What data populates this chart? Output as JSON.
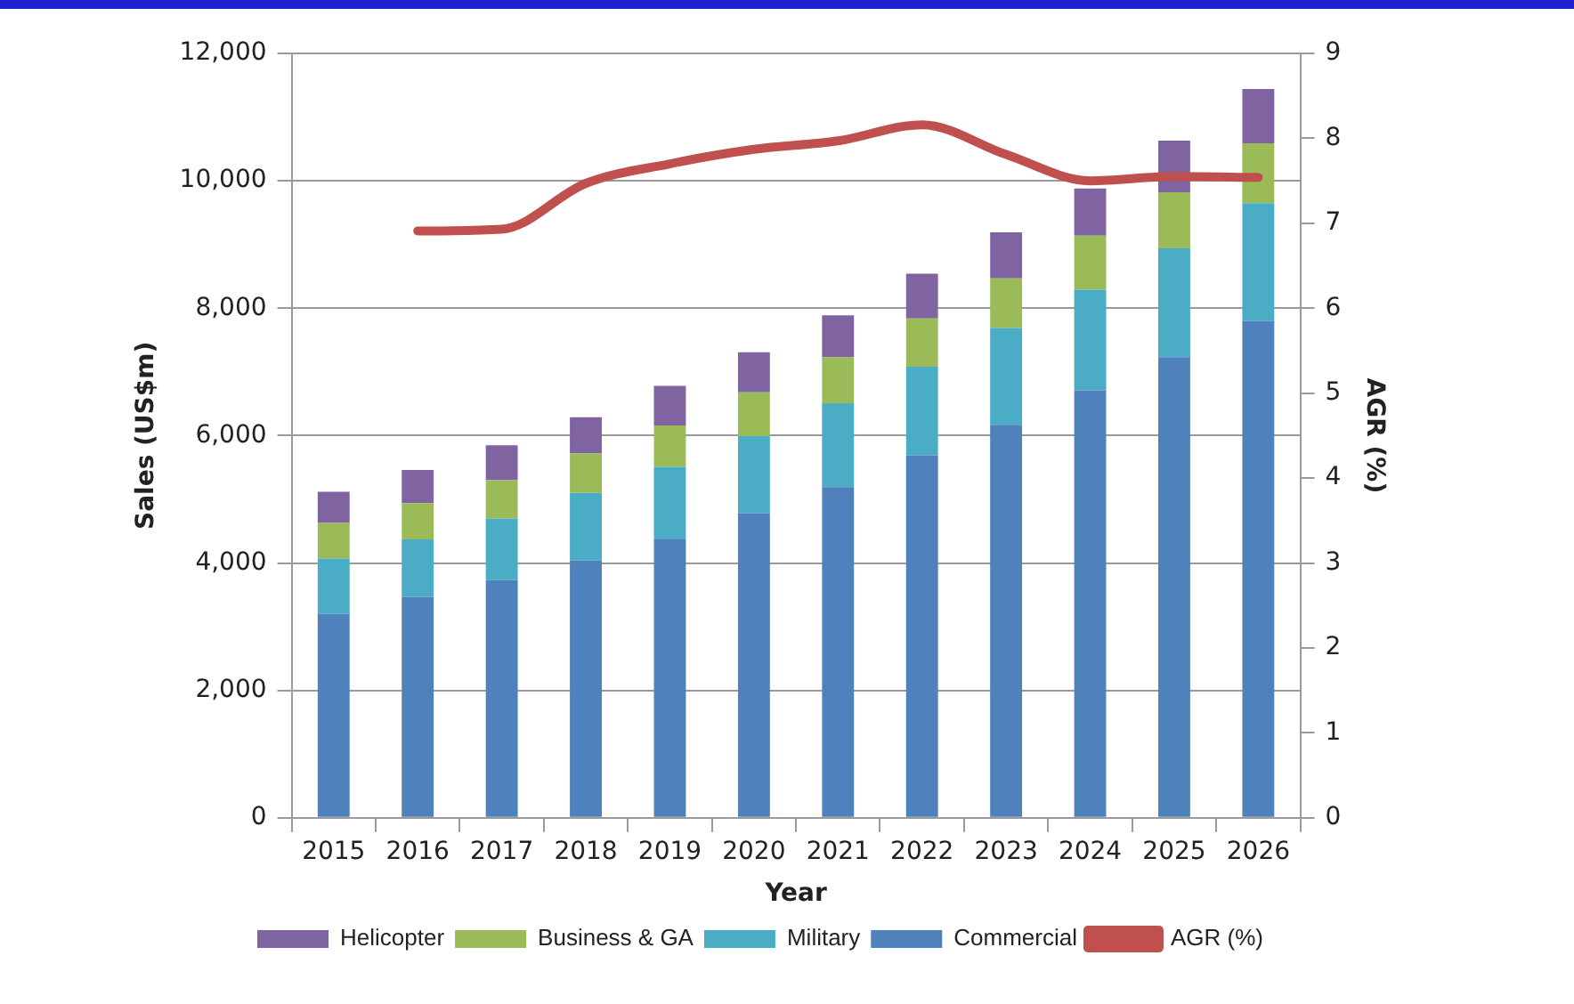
{
  "chart_data": {
    "type": "bar",
    "stacked": true,
    "xlabel": "Year",
    "ylabel": "Sales (US$m)",
    "y2label": "AGR (%)",
    "categories": [
      "2015",
      "2016",
      "2017",
      "2018",
      "2019",
      "2020",
      "2021",
      "2022",
      "2023",
      "2024",
      "2025",
      "2026"
    ],
    "series": [
      {
        "name": "Commercial",
        "color": "#4f81bd",
        "values": [
          3200,
          3470,
          3730,
          4040,
          4380,
          4780,
          5190,
          5690,
          6170,
          6710,
          7230,
          7800
        ]
      },
      {
        "name": "Military",
        "color": "#4bacc6",
        "values": [
          870,
          900,
          970,
          1060,
          1130,
          1210,
          1320,
          1390,
          1520,
          1580,
          1710,
          1850
        ]
      },
      {
        "name": "Business & GA",
        "color": "#9bbb59",
        "values": [
          560,
          570,
          600,
          620,
          650,
          690,
          720,
          760,
          780,
          850,
          880,
          940
        ]
      },
      {
        "name": "Helicopter",
        "color": "#8064a2",
        "values": [
          490,
          520,
          550,
          570,
          620,
          630,
          660,
          700,
          720,
          740,
          810,
          850
        ]
      },
      {
        "name": "AGR (%)",
        "type": "line",
        "axis": "y2",
        "color": "#c0504d",
        "marker": "none",
        "values": [
          null,
          6.91,
          6.93,
          7.47,
          7.7,
          7.87,
          7.97,
          8.16,
          7.81,
          7.5,
          7.55,
          7.54
        ]
      }
    ],
    "ylim": [
      0,
      12000
    ],
    "yticks": [
      0,
      {
        "value": 2000,
        "label": "2,000"
      },
      {
        "value": 4000,
        "label": "4,000"
      },
      {
        "value": 6000,
        "label": "6,000"
      },
      {
        "value": 8000,
        "label": "8,000"
      },
      {
        "value": 10000,
        "label": "10,000"
      },
      {
        "value": 12000,
        "label": "12,000"
      }
    ],
    "y2lim": [
      0,
      9
    ],
    "y2ticks": [
      0,
      1,
      2,
      3,
      4,
      5,
      6,
      7,
      8,
      9
    ],
    "grid": "y",
    "legend": "bottom"
  }
}
